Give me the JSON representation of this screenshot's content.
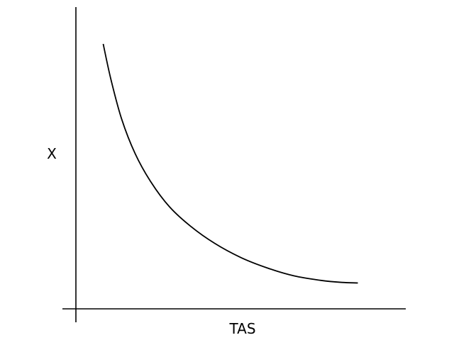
{
  "chart_data": {
    "type": "line",
    "title": "",
    "xlabel": "TAS",
    "ylabel": "X",
    "grid": false,
    "ticks": false,
    "series": [
      {
        "values": [
          {
            "x": 0.02,
            "y": 1.0
          },
          {
            "x": 0.05,
            "y": 0.86
          },
          {
            "x": 0.09,
            "y": 0.71
          },
          {
            "x": 0.14,
            "y": 0.58
          },
          {
            "x": 0.2,
            "y": 0.47
          },
          {
            "x": 0.27,
            "y": 0.375
          },
          {
            "x": 0.35,
            "y": 0.3
          },
          {
            "x": 0.44,
            "y": 0.235
          },
          {
            "x": 0.54,
            "y": 0.18
          },
          {
            "x": 0.64,
            "y": 0.14
          },
          {
            "x": 0.74,
            "y": 0.11
          },
          {
            "x": 0.84,
            "y": 0.093
          },
          {
            "x": 0.92,
            "y": 0.085
          },
          {
            "x": 0.98,
            "y": 0.083
          }
        ]
      }
    ]
  }
}
